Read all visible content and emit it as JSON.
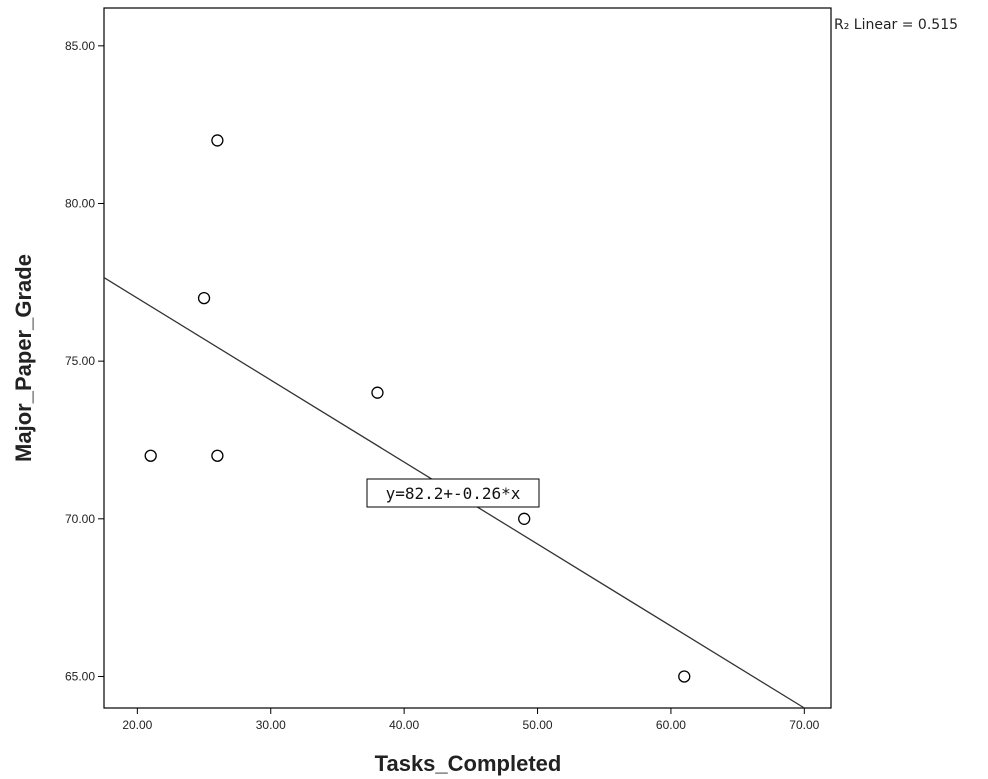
{
  "chart_data": {
    "type": "scatter",
    "xlabel": "Tasks_Completed",
    "ylabel": "Major_Paper_Grade",
    "xlim": [
      17.5,
      72
    ],
    "ylim": [
      64,
      86.2
    ],
    "x_ticks": [
      20,
      30,
      40,
      50,
      60,
      70
    ],
    "y_ticks": [
      65,
      70,
      75,
      80,
      85
    ],
    "x_tick_labels": [
      "20.00",
      "30.00",
      "40.00",
      "50.00",
      "60.00",
      "70.00"
    ],
    "y_tick_labels": [
      "65.00",
      "70.00",
      "75.00",
      "80.00",
      "85.00"
    ],
    "points": [
      {
        "x": 21,
        "y": 72
      },
      {
        "x": 25,
        "y": 77
      },
      {
        "x": 26,
        "y": 82
      },
      {
        "x": 26,
        "y": 72
      },
      {
        "x": 38,
        "y": 74
      },
      {
        "x": 49,
        "y": 70
      },
      {
        "x": 61,
        "y": 65
      }
    ],
    "fit_line": {
      "intercept": 82.2,
      "slope": -0.26
    },
    "fit_label": "y=82.2+-0.26*x",
    "r_squared_label": "R₂ Linear = 0.515",
    "grid": false
  },
  "colors": {
    "axis": "#000000",
    "marker_stroke": "#000000",
    "line": "#333333"
  }
}
